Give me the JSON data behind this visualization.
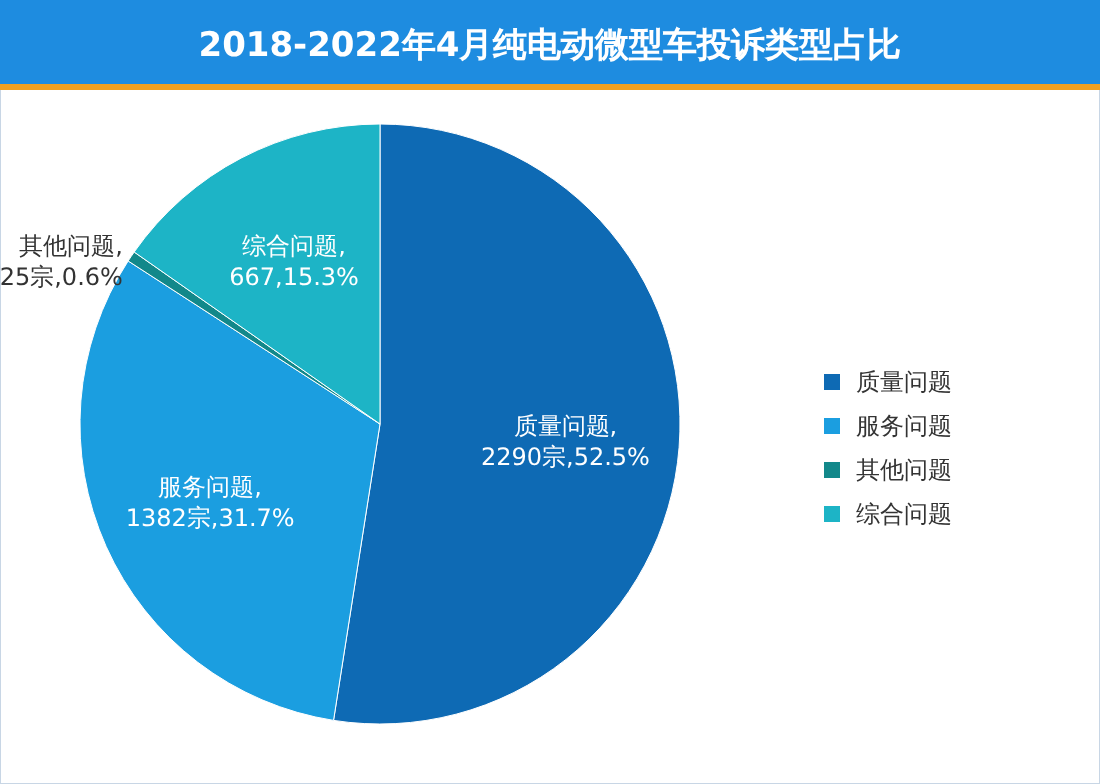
{
  "chart_data": {
    "type": "pie",
    "title": "2018-2022年4月纯电动微型车投诉类型占比",
    "categories": [
      "质量问题",
      "服务问题",
      "其他问题",
      "综合问题"
    ],
    "values": [
      2290,
      1382,
      25,
      667
    ],
    "value_labels": [
      "质量问题,\n2290宗,52.5%",
      "服务问题,\n1382宗,31.7%",
      "其他问题,\n25宗,0.6%",
      "综合问题,\n667,15.3%"
    ],
    "colors": [
      "#0e6ab4",
      "#1b9ee0",
      "#12888a",
      "#1db4c6"
    ],
    "legend": "right"
  }
}
